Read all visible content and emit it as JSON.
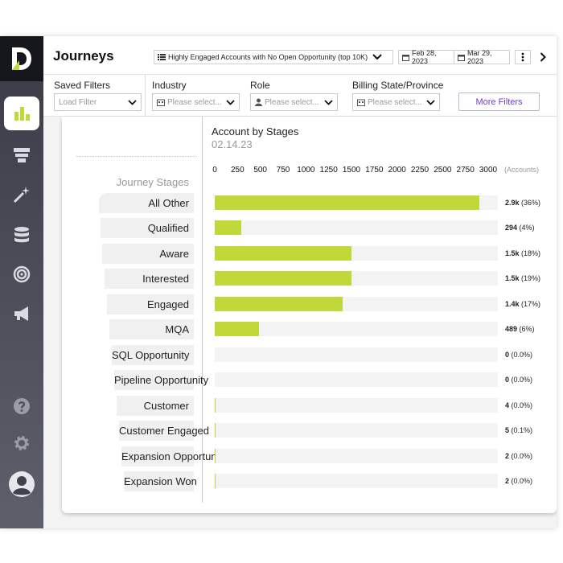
{
  "header": {
    "title": "Journeys",
    "segment": "Highly Engaged Accounts with No Open Opportunity (top 10K)",
    "date_start": "Feb 28, 2023",
    "date_end": "Mar 29, 2023"
  },
  "filters": {
    "saved_filters_label": "Saved Filters",
    "saved_filters_placeholder": "Load Filter",
    "industry_label": "Industry",
    "industry_placeholder": "Please select...",
    "role_label": "Role",
    "role_placeholder": "Please select...",
    "billing_label": "Billing State/Province",
    "billing_placeholder": "Please select...",
    "more_filters": "More Filters"
  },
  "stages_heading": "Journey Stages",
  "icons": {
    "sidebar": [
      "logo-icon",
      "bar-chart-icon",
      "funnel-icon",
      "magic-wand-icon",
      "database-icon",
      "target-icon",
      "megaphone-icon",
      "help-icon",
      "gear-icon",
      "avatar-icon"
    ],
    "accent": "#c1d83a",
    "link": "#6f3bd8"
  },
  "chart_data": {
    "type": "bar",
    "title": "Account by Stages",
    "subtitle": "02.14.23",
    "xlabel": "(Accounts)",
    "xlim": [
      0,
      3000
    ],
    "ticks": [
      "0",
      "250",
      "500",
      "750",
      "1000",
      "1250",
      "1500",
      "1750",
      "2000",
      "2250",
      "2500",
      "2750",
      "3000"
    ],
    "categories": [
      "All Other",
      "Qualified",
      "Aware",
      "Interested",
      "Engaged",
      "MQA",
      "SQL Opportunity",
      "Pipeline Opportunity",
      "Customer",
      "Customer Engaged",
      "Expansion Opportunity",
      "Expansion Won"
    ],
    "values": [
      2900,
      294,
      1500,
      1500,
      1400,
      489,
      0,
      0,
      4,
      5,
      2,
      2
    ],
    "value_labels": [
      "2.9k",
      "294",
      "1.5k",
      "1.5k",
      "1.4k",
      "489",
      "0",
      "0",
      "4",
      "5",
      "2",
      "2"
    ],
    "percent_labels": [
      "(36%)",
      "(4%)",
      "(18%)",
      "(19%)",
      "(17%)",
      "(6%)",
      "(0.0%)",
      "(0.0%)",
      "(0.0%)",
      "(0.1%)",
      "(0.0%)",
      "(0.0%)"
    ]
  }
}
